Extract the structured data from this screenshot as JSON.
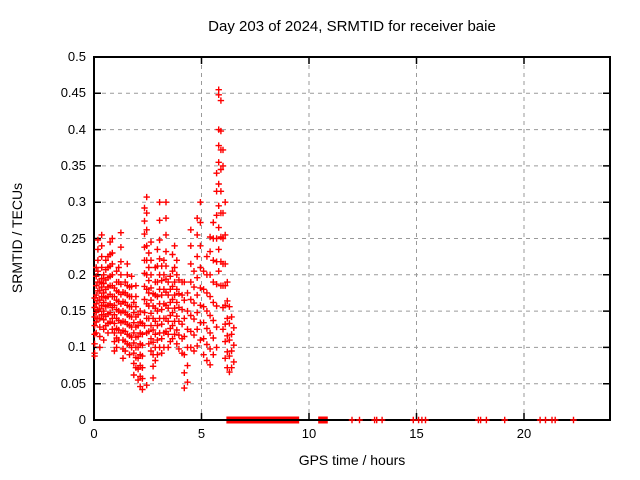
{
  "chart_data": {
    "type": "scatter",
    "title": "Day 203 of 2024, SRMTID for receiver baie",
    "xlabel": "GPS time / hours",
    "ylabel": "SRMTID / TECUs",
    "xlim": [
      0,
      24
    ],
    "ylim": [
      0,
      0.5
    ],
    "x_tick_values": [
      0,
      5,
      10,
      15,
      20
    ],
    "x_tick_labels": [
      "0",
      "5",
      "10",
      "15",
      "20"
    ],
    "y_tick_values": [
      0,
      0.05,
      0.1,
      0.15,
      0.2,
      0.25,
      0.3,
      0.35,
      0.4,
      0.45,
      0.5
    ],
    "y_tick_labels": [
      "0",
      "0.05",
      "0.1",
      "0.15",
      "0.2",
      "0.25",
      "0.3",
      "0.35",
      "0.4",
      "0.45",
      "0.5"
    ],
    "grid": true,
    "legend_position": "none",
    "marker": "plus",
    "marker_color": "#ff0000",
    "grid_color": "#9a9a9a",
    "border_color": "#000000",
    "columns": [
      [
        0.03,
        [
          0.092,
          0.105,
          0.118,
          0.13,
          0.142,
          0.155,
          0.168,
          0.088
        ]
      ],
      [
        0.1,
        [
          0.12,
          0.135,
          0.148,
          0.16,
          0.172,
          0.185,
          0.198,
          0.21
        ]
      ],
      [
        0.18,
        [
          0.14,
          0.152,
          0.165,
          0.178,
          0.19,
          0.205,
          0.22,
          0.235,
          0.248
        ]
      ],
      [
        0.27,
        [
          0.1,
          0.115,
          0.128,
          0.14,
          0.153,
          0.165,
          0.178,
          0.19
        ]
      ],
      [
        0.36,
        [
          0.145,
          0.158,
          0.17,
          0.183,
          0.195,
          0.21,
          0.225,
          0.24,
          0.255
        ]
      ],
      [
        0.45,
        [
          0.11,
          0.125,
          0.138,
          0.15,
          0.162,
          0.175,
          0.188,
          0.2
        ]
      ],
      [
        0.55,
        [
          0.13,
          0.143,
          0.156,
          0.168,
          0.18,
          0.193,
          0.207,
          0.22
        ]
      ],
      [
        0.65,
        [
          0.12,
          0.133,
          0.146,
          0.158,
          0.17,
          0.183,
          0.196,
          0.21,
          0.225
        ]
      ],
      [
        0.75,
        [
          0.135,
          0.148,
          0.16,
          0.173,
          0.185,
          0.198,
          0.212,
          0.228,
          0.245
        ]
      ],
      [
        0.85,
        [
          0.125,
          0.14,
          0.155,
          0.17,
          0.185,
          0.2,
          0.215,
          0.23,
          0.25
        ]
      ],
      [
        0.95,
        [
          0.095,
          0.108,
          0.12,
          0.133,
          0.145,
          0.158,
          0.17,
          0.182
        ]
      ],
      [
        1.05,
        [
          0.1,
          0.113,
          0.126,
          0.14,
          0.152,
          0.165,
          0.178,
          0.19,
          0.205
        ]
      ],
      [
        1.15,
        [
          0.11,
          0.124,
          0.137,
          0.15,
          0.163,
          0.176,
          0.19,
          0.21
        ]
      ],
      [
        1.25,
        [
          0.12,
          0.134,
          0.148,
          0.16,
          0.173,
          0.187,
          0.2,
          0.218,
          0.238,
          0.258
        ]
      ],
      [
        1.35,
        [
          0.085,
          0.098,
          0.11,
          0.123,
          0.136,
          0.15,
          0.163,
          0.176
        ]
      ],
      [
        1.45,
        [
          0.095,
          0.108,
          0.122,
          0.135,
          0.148,
          0.162,
          0.175,
          0.19
        ]
      ],
      [
        1.55,
        [
          0.105,
          0.118,
          0.132,
          0.145,
          0.158,
          0.172,
          0.185,
          0.2,
          0.215
        ]
      ],
      [
        1.65,
        [
          0.09,
          0.103,
          0.116,
          0.13,
          0.143,
          0.156,
          0.17,
          0.183
        ]
      ],
      [
        1.75,
        [
          0.1,
          0.114,
          0.128,
          0.142,
          0.156,
          0.17,
          0.184,
          0.198
        ]
      ],
      [
        1.85,
        [
          0.062,
          0.078,
          0.092,
          0.106,
          0.12,
          0.134,
          0.148,
          0.162
        ]
      ],
      [
        1.95,
        [
          0.072,
          0.086,
          0.1,
          0.114,
          0.128,
          0.142,
          0.156,
          0.17,
          0.185
        ]
      ],
      [
        2.05,
        [
          0.055,
          0.07,
          0.085,
          0.1,
          0.115,
          0.13,
          0.145
        ]
      ],
      [
        2.15,
        [
          0.046,
          0.06,
          0.075,
          0.09,
          0.105,
          0.12,
          0.135,
          0.15
        ]
      ],
      [
        2.25,
        [
          0.042,
          0.057,
          0.072,
          0.088,
          0.103,
          0.118,
          0.133
        ]
      ],
      [
        2.35,
        [
          0.13,
          0.148,
          0.166,
          0.184,
          0.202,
          0.22,
          0.238,
          0.256,
          0.274,
          0.292
        ]
      ],
      [
        2.45,
        [
          0.048,
          0.12,
          0.14,
          0.16,
          0.18,
          0.2,
          0.22,
          0.24,
          0.262,
          0.285,
          0.307
        ]
      ],
      [
        2.55,
        [
          0.105,
          0.122,
          0.14,
          0.157,
          0.175,
          0.192,
          0.21,
          0.23
        ]
      ],
      [
        2.65,
        [
          0.095,
          0.112,
          0.13,
          0.147,
          0.165,
          0.182,
          0.2,
          0.22,
          0.245
        ]
      ],
      [
        2.75,
        [
          0.058,
          0.074,
          0.09,
          0.107,
          0.124,
          0.14,
          0.157,
          0.174
        ]
      ],
      [
        2.85,
        [
          0.082,
          0.1,
          0.118,
          0.136,
          0.154,
          0.172,
          0.19,
          0.21
        ]
      ],
      [
        2.95,
        [
          0.09,
          0.11,
          0.13,
          0.15,
          0.17,
          0.19,
          0.212,
          0.235
        ]
      ],
      [
        3.05,
        [
          0.1,
          0.12,
          0.14,
          0.16,
          0.18,
          0.2,
          0.222,
          0.248,
          0.275,
          0.3
        ]
      ],
      [
        3.15,
        [
          0.092,
          0.112,
          0.132,
          0.152,
          0.172,
          0.192,
          0.212
        ]
      ],
      [
        3.25,
        [
          0.1,
          0.12,
          0.14,
          0.16,
          0.18,
          0.2,
          0.22
        ]
      ],
      [
        3.35,
        [
          0.122,
          0.14,
          0.158,
          0.176,
          0.194,
          0.212,
          0.232,
          0.255,
          0.278,
          0.3
        ]
      ],
      [
        3.45,
        [
          0.1,
          0.118,
          0.136,
          0.154,
          0.172,
          0.19
        ]
      ],
      [
        3.55,
        [
          0.108,
          0.126,
          0.144,
          0.162,
          0.18,
          0.198
        ]
      ],
      [
        3.65,
        [
          0.112,
          0.13,
          0.148,
          0.166,
          0.184,
          0.205,
          0.228
        ]
      ],
      [
        3.75,
        [
          0.118,
          0.136,
          0.154,
          0.172,
          0.19,
          0.21,
          0.24
        ]
      ],
      [
        3.85,
        [
          0.105,
          0.124,
          0.143,
          0.162,
          0.18,
          0.2,
          0.22
        ]
      ],
      [
        3.95,
        [
          0.098,
          0.117,
          0.136,
          0.155,
          0.174,
          0.193
        ]
      ],
      [
        4.1,
        [
          0.092,
          0.112,
          0.132,
          0.152,
          0.172,
          0.19
        ]
      ],
      [
        4.2,
        [
          0.044,
          0.065,
          0.09,
          0.115,
          0.14,
          0.165,
          0.19
        ]
      ],
      [
        4.35,
        [
          0.052,
          0.075,
          0.1,
          0.125,
          0.15,
          0.175
        ]
      ],
      [
        4.5,
        [
          0.1,
          0.122,
          0.144,
          0.166,
          0.19,
          0.215,
          0.24,
          0.262
        ]
      ],
      [
        4.65,
        [
          0.095,
          0.117,
          0.139,
          0.161,
          0.183,
          0.205
        ]
      ],
      [
        4.8,
        [
          0.102,
          0.125,
          0.148,
          0.172,
          0.196,
          0.225,
          0.255,
          0.278
        ]
      ],
      [
        4.95,
        [
          0.11,
          0.134,
          0.158,
          0.182,
          0.21,
          0.24,
          0.272,
          0.3
        ]
      ],
      [
        5.1,
        [
          0.09,
          0.112,
          0.134,
          0.156,
          0.18,
          0.205
        ]
      ],
      [
        5.25,
        [
          0.082,
          0.104,
          0.126,
          0.15,
          0.175,
          0.2,
          0.225
        ]
      ],
      [
        5.4,
        [
          0.076,
          0.098,
          0.12,
          0.144,
          0.17,
          0.2,
          0.232,
          0.252
        ]
      ],
      [
        5.55,
        [
          0.09,
          0.113,
          0.137,
          0.162,
          0.19,
          0.22,
          0.25,
          0.272
        ]
      ],
      [
        5.7,
        [
          0.1,
          0.128,
          0.157,
          0.187,
          0.218,
          0.25,
          0.282,
          0.315,
          0.34
        ]
      ],
      [
        5.8,
        [
          0.205,
          0.235,
          0.265,
          0.295,
          0.325,
          0.355,
          0.378,
          0.4,
          0.448,
          0.455
        ]
      ],
      [
        5.9,
        [
          0.185,
          0.218,
          0.252,
          0.285,
          0.315,
          0.345,
          0.372,
          0.398,
          0.44
        ]
      ],
      [
        6.0,
        [
          0.125,
          0.155,
          0.185,
          0.215,
          0.25,
          0.285,
          0.35,
          0.372
        ]
      ],
      [
        6.1,
        [
          0.085,
          0.108,
          0.132,
          0.158,
          0.185,
          0.215,
          0.255,
          0.3
        ]
      ],
      [
        6.2,
        [
          0.072,
          0.094,
          0.116,
          0.14,
          0.164,
          0.19
        ]
      ],
      [
        6.3,
        [
          0.066,
          0.088,
          0.11,
          0.133,
          0.156
        ]
      ],
      [
        6.4,
        [
          0.072,
          0.095,
          0.118,
          0.142
        ]
      ],
      [
        6.5,
        [
          0.08,
          0.103,
          0.127
        ]
      ]
    ],
    "zero_runs": [
      [
        6.25,
        7.82
      ],
      [
        7.9,
        8.75
      ],
      [
        8.88,
        9.05
      ],
      [
        9.15,
        9.45
      ],
      [
        10.52,
        10.78
      ]
    ],
    "zero_singles": [
      12.0,
      12.35,
      13.05,
      13.15,
      13.4,
      14.85,
      15.1,
      15.25,
      15.42,
      17.88,
      17.98,
      18.25,
      19.1,
      20.75,
      21.0,
      21.3,
      21.45,
      22.3
    ]
  }
}
